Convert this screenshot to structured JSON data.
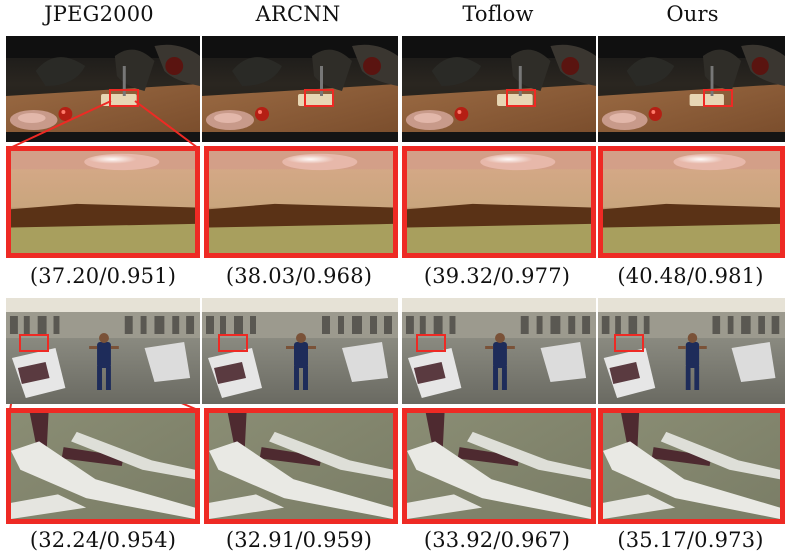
{
  "columns": [
    {
      "method": "JPEG2000",
      "scores": [
        "(37.20/0.951)",
        "(32.24/0.954)"
      ]
    },
    {
      "method": "ARCNN",
      "scores": [
        "(38.03/0.968)",
        "(32.91/0.959)"
      ]
    },
    {
      "method": "Toflow",
      "scores": [
        "(39.32/0.977)",
        "(33.92/0.967)"
      ]
    },
    {
      "method": "Ours",
      "scores": [
        "(40.48/0.981)",
        "(35.17/0.973)"
      ]
    }
  ],
  "colors": {
    "highlight": "#ee2a24"
  },
  "images": [
    "kitchen-scene-frame",
    "gym-scene-frame"
  ]
}
